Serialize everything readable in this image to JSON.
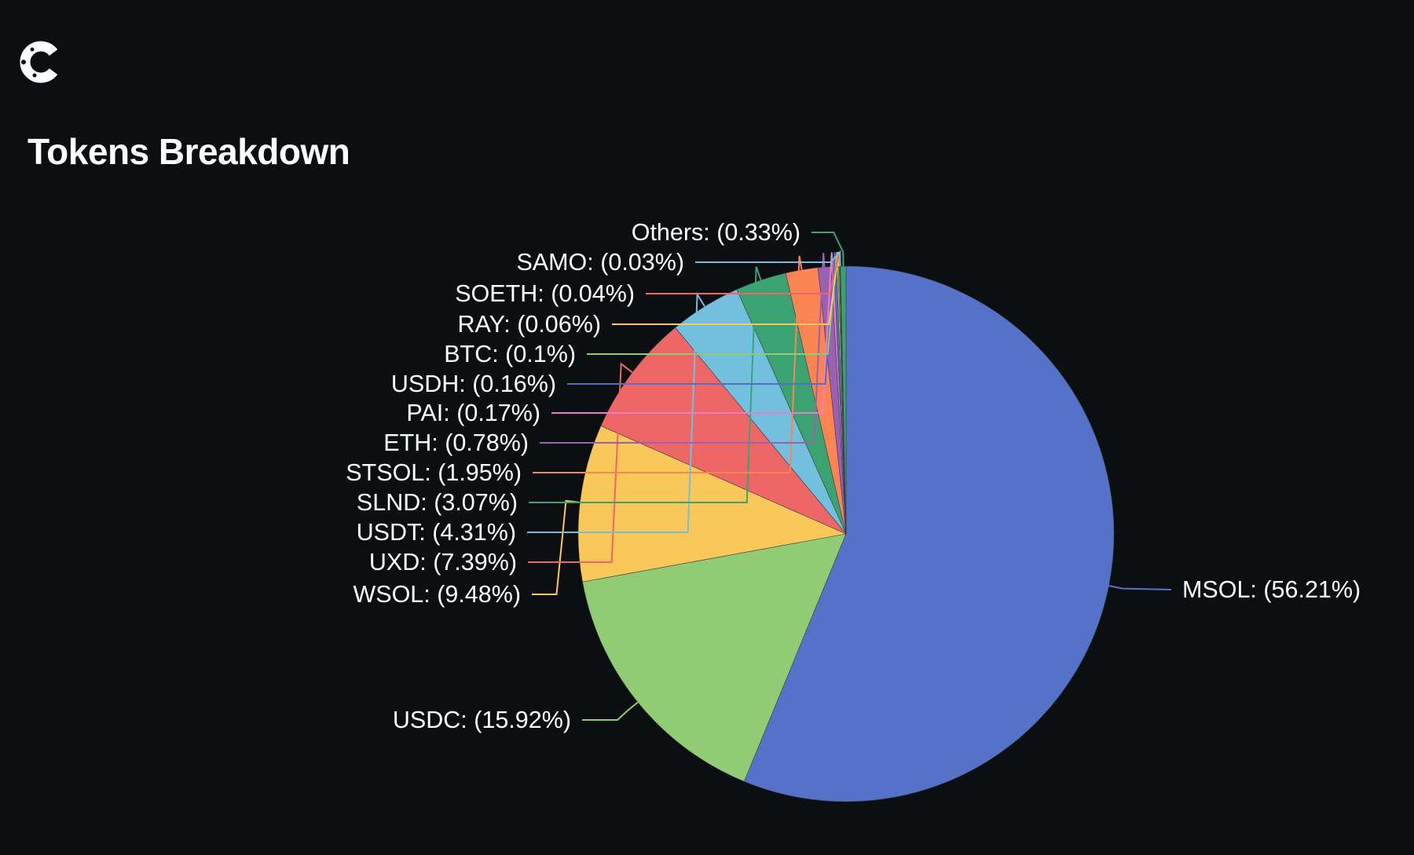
{
  "header": {
    "logo_icon": "coinstats-c-logo-icon"
  },
  "chart_data": {
    "type": "pie",
    "title": "Tokens Breakdown",
    "start_angle_deg": 0,
    "direction": "clockwise",
    "slices": [
      {
        "label": "MSOL",
        "value": 56.21,
        "display": "MSOL: (56.21%)",
        "color": "#5672c8"
      },
      {
        "label": "USDC",
        "value": 15.92,
        "display": "USDC: (15.92%)",
        "color": "#91cb74"
      },
      {
        "label": "WSOL",
        "value": 9.48,
        "display": "WSOL: (9.48%)",
        "color": "#fac858"
      },
      {
        "label": "UXD",
        "value": 7.39,
        "display": "UXD: (7.39%)",
        "color": "#ee6666"
      },
      {
        "label": "USDT",
        "value": 4.31,
        "display": "USDT: (4.31%)",
        "color": "#73c0de"
      },
      {
        "label": "SLND",
        "value": 3.07,
        "display": "SLND: (3.07%)",
        "color": "#3ba272"
      },
      {
        "label": "STSOL",
        "value": 1.95,
        "display": "STSOL: (1.95%)",
        "color": "#fc8452"
      },
      {
        "label": "ETH",
        "value": 0.78,
        "display": "ETH: (0.78%)",
        "color": "#9a60b4"
      },
      {
        "label": "PAI",
        "value": 0.17,
        "display": "PAI: (0.17%)",
        "color": "#ea7ccc"
      },
      {
        "label": "USDH",
        "value": 0.16,
        "display": "USDH: (0.16%)",
        "color": "#5470c6"
      },
      {
        "label": "BTC",
        "value": 0.1,
        "display": "BTC: (0.1%)",
        "color": "#91cc75"
      },
      {
        "label": "RAY",
        "value": 0.06,
        "display": "RAY: (0.06%)",
        "color": "#fac858"
      },
      {
        "label": "SOETH",
        "value": 0.04,
        "display": "SOETH: (0.04%)",
        "color": "#ee6666"
      },
      {
        "label": "SAMO",
        "value": 0.03,
        "display": "SAMO: (0.03%)",
        "color": "#73c0de"
      },
      {
        "label": "Others",
        "value": 0.33,
        "display": "Others: (0.33%)",
        "color": "#3ba272"
      }
    ]
  }
}
